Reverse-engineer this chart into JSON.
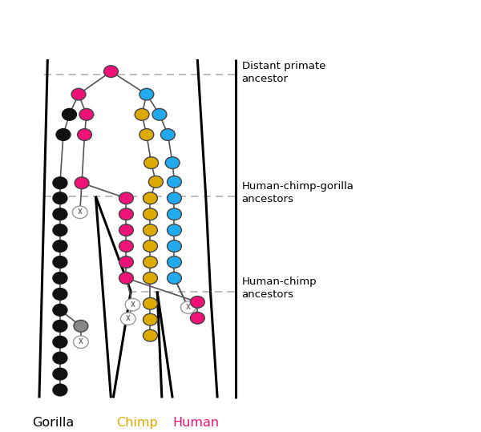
{
  "figsize": [
    6.0,
    5.39
  ],
  "dpi": 100,
  "colors": {
    "black": "#111111",
    "pink": "#EE1177",
    "yellow": "#DDAA00",
    "blue": "#22AAEE",
    "gray": "#888888",
    "white": "#FFFFFF",
    "tube": "#000000",
    "dashed": "#AAAAAA",
    "conn": "#555555"
  },
  "labels": {
    "gorilla": "Gorilla",
    "chimp": "Chimp",
    "human": "Human",
    "distant": "Distant primate\nancestor",
    "hcg": "Human-chimp-gorilla\nancestors",
    "hc": "Human-chimp\nancestors"
  }
}
